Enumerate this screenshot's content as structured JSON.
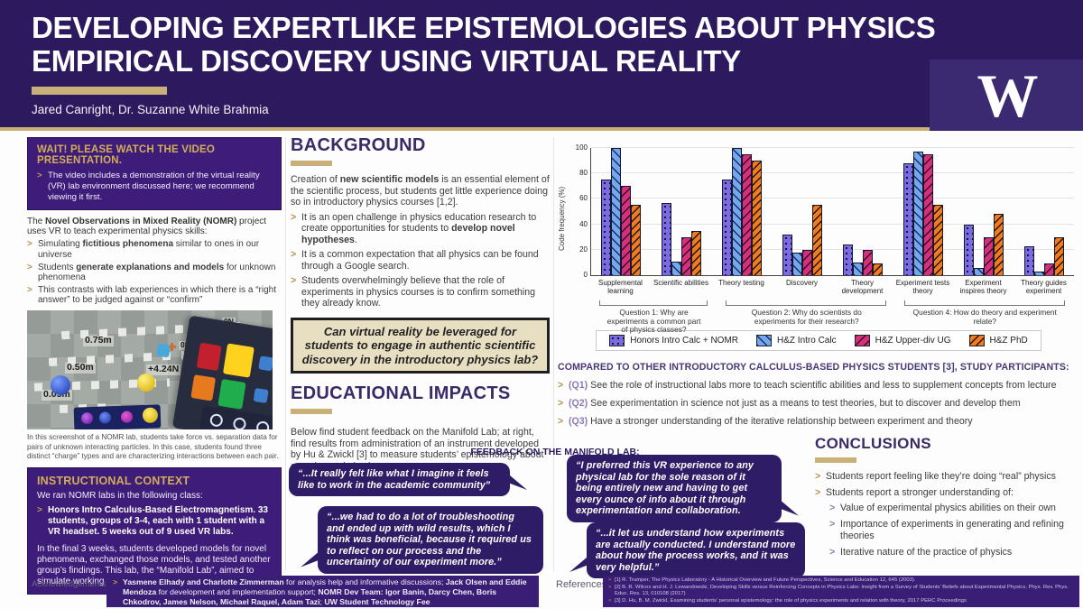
{
  "header": {
    "title_line1": "DEVELOPING EXPERTLIKE EPISTEMOLOGIES ABOUT PHYSICS",
    "title_line2": "EMPIRICAL DISCOVERY USING VIRTUAL REALITY",
    "authors": "Jared Canright, Dr. Suzanne White Brahmia",
    "logo_letter": "W"
  },
  "left": {
    "video_box": {
      "title": "WAIT! PLEASE WATCH THE VIDEO PRESENTATION.",
      "body": "The video includes a demonstration of the virtual reality (VR) lab environment discussed here; we recommend viewing it first."
    },
    "intro": "The **Novel Observations in Mixed Reality (NOMR)** project uses VR to teach experimental physics skills:",
    "bullets": [
      "Simulating **fictitious phenomena** similar to ones in our universe",
      "Students **generate explanations and models** for unknown phenomena",
      "This contrasts with lab experiences in which there is a “right answer” to be judged against or “confirm”"
    ],
    "vr_labels": {
      "d1": "0.75m",
      "d2": "0.50m",
      "d3": "0.05m",
      "f1": "+4.24N",
      "f2": "0N",
      "f3": "0N"
    },
    "caption": "In this screenshot of a NOMR lab, students take force vs. separation data for pairs of unknown interacting particles. In this case, students found three distinct “charge” types and are characterizing interactions between each pair.",
    "context_box": {
      "title": "INSTRUCTIONAL CONTEXT",
      "intro": "We ran NOMR labs in the following class:",
      "bullet": "Honors Intro Calculus-Based Electromagnetism. 33 students, groups of 3-4, each with 1 student with a VR headset. 5 weeks out of 9 used VR labs.",
      "body": "In the final 3 weeks, students developed models for novel phenomena, exchanged those models, and tested another group’s findings. This lab, the “Manifold Lab”, aimed to simulate working in a scientific collaboration."
    }
  },
  "background": {
    "title": "BACKGROUND",
    "intro": "Creation of **new scientific models** is an essential element of the scientific process, but students get little experience doing so in introductory physics courses [1,2].",
    "bullets": [
      "It is an open challenge in physics education research to create opportunities for students to **develop novel hypotheses**.",
      "It is a common expectation that all physics can be found through a Google search.",
      "Students overwhelmingly believe that the role of experiments in physics courses is to confirm something they already know."
    ]
  },
  "question_box": "Can virtual reality be leveraged for students to engage in authentic scientific discovery in the introductory physics lab?",
  "impacts": {
    "title": "EDUCATIONAL IMPACTS",
    "body": "Below find student feedback on the Manifold Lab; at right, find results from administration of an instrument developed by Hu & Zwickl [3] to measure students’ epistemology about experimental physics."
  },
  "feedback": {
    "title": "FEEDBACK ON THE MANIFOLD LAB:",
    "quotes": [
      {
        "text": "“...It really felt like what I imagine it feels like to work in the academic community”"
      },
      {
        "text": "“...we had to do a lot of troubleshooting and ended up with wild results, which I think was beneficial, because it required us to reflect on our process and the uncertainty of our experiment more.”"
      },
      {
        "text": "“I preferred this VR experience to any physical lab for the sole reason of it being entirely new and having to get **every ounce of info about it through experimentation and collaboration**."
      },
      {
        "text": "“...it let us understand **how experiments are actually conducted**. I understand more about how the process works, and it was very helpful.”"
      }
    ]
  },
  "chart_data": {
    "type": "bar",
    "title": "",
    "ylabel": "Code frequency (%)",
    "ylim": [
      0,
      100
    ],
    "yticks": [
      0,
      20,
      40,
      60,
      80,
      100
    ],
    "grid": true,
    "legend_position": "bottom",
    "categories": [
      "Supplemental learning",
      "Scientific abilities",
      "Theory testing",
      "Discovery",
      "Theory development",
      "Experiment tests theory",
      "Experiment inspires theory",
      "Theory guides experiment"
    ],
    "series": [
      {
        "name": "Honors Intro Calc + NOMR",
        "values": [
          75,
          57,
          75,
          32,
          24,
          88,
          40,
          23
        ]
      },
      {
        "name": "H&Z Intro Calc",
        "values": [
          100,
          11,
          100,
          18,
          10,
          97,
          6,
          3
        ]
      },
      {
        "name": "H&Z Upper-div UG",
        "values": [
          70,
          30,
          95,
          20,
          20,
          95,
          30,
          9
        ]
      },
      {
        "name": "H&Z PhD",
        "values": [
          55,
          35,
          90,
          55,
          9,
          55,
          48,
          30
        ]
      }
    ],
    "question_groups": [
      {
        "label": "Question 1: Why are experiments a common part of physics classes?",
        "span": 2
      },
      {
        "label": "Question 2: Why do scientists do experiments for their research?",
        "span": 3
      },
      {
        "label": "Question 4: How do theory and experiment relate?",
        "span": 3
      }
    ]
  },
  "compared": {
    "title": "COMPARED TO OTHER INTRODUCTORY CALCULUS-BASED PHYSICS STUDENTS [3], STUDY PARTICIPANTS:",
    "items": [
      {
        "tag": "(Q1)",
        "text": "See the role of instructional labs more to teach scientific abilities and less to supplement concepts from lecture"
      },
      {
        "tag": "(Q2)",
        "text": "See experimentation in science not just as a means to test theories, but to discover and develop them"
      },
      {
        "tag": "(Q3)",
        "text": "Have a stronger understanding of the iterative relationship between experiment and theory"
      }
    ]
  },
  "conclusions": {
    "title": "CONCLUSIONS",
    "items": [
      "Students report feeling like they’re doing “real” physics",
      "Students report a stronger understanding of:"
    ],
    "subitems": [
      "Value of experimental physics abilities on their own",
      "Importance of experiments in generating and refining theories",
      "Iterative nature of the practice of physics"
    ]
  },
  "footer": {
    "ack_label": "Acknowledgements",
    "ack_text": "**Yasmene Elhady and Charlotte Zimmerman** for analysis help and informative discussions; **Jack Olsen and Eddie Mendoza** for development and implementation support; **NOMR Dev Team: Igor Banin, Darcy Chen, Boris Chkodrov, James Nelson, Michael Raquel, Adam Tazi**; **UW Student Technology Fee**",
    "refs_label": "References",
    "references": [
      "[1] R. Trumper, The Physics Laboratory - A Historical Overview and Future Perspectives, Science and Education 12, 645 (2003).",
      "[2] B. R. Wilcox and H. J. Lewandowski, Developing Skills versus Reinforcing Concepts in Physics Labs: Insight from a Survey of Students’ Beliefs about Experimental Physics, Phys. Rev. Phys. Educ. Res. 13, 010108 (2017)",
      "[3] D. Hu, B. M. Zwickl, Examining students’ personal epistemology: the role of physics experiments and relation with theory, 2017 PERC Proceedings"
    ]
  }
}
